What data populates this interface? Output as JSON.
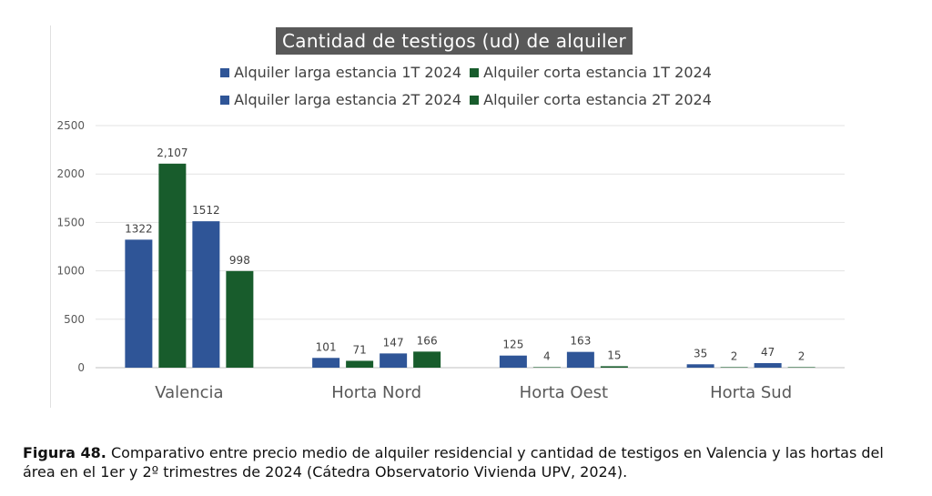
{
  "chart_data": {
    "type": "bar",
    "title": "Cantidad de testigos (ud) de alquiler",
    "categories": [
      "Valencia",
      "Horta Nord",
      "Horta Oest",
      "Horta Sud"
    ],
    "series": [
      {
        "name": "Alquiler larga estancia 1T 2024",
        "color": "#2F5597",
        "values": [
          1322,
          101,
          125,
          35
        ],
        "labels": [
          "1322",
          "101",
          "125",
          "35"
        ]
      },
      {
        "name": "Alquiler corta estancia 1T 2024",
        "color": "#185C2C",
        "values": [
          2107,
          71,
          4,
          2
        ],
        "labels": [
          "2,107",
          "71",
          "4",
          "2"
        ]
      },
      {
        "name": "Alquiler larga estancia 2T 2024",
        "color": "#2F5597",
        "values": [
          1512,
          147,
          163,
          47
        ],
        "labels": [
          "1512",
          "147",
          "163",
          "47"
        ]
      },
      {
        "name": "Alquiler corta estancia 2T 2024",
        "color": "#185C2C",
        "values": [
          998,
          166,
          15,
          2
        ],
        "labels": [
          "998",
          "166",
          "15",
          "2"
        ]
      }
    ],
    "yticks": [
      "0",
      "500",
      "1000",
      "1500",
      "2000",
      "2500"
    ],
    "ylim": [
      0,
      2500
    ],
    "grid": true,
    "legend_position": "top"
  },
  "caption": {
    "label": "Figura 48.",
    "text": " Comparativo entre precio medio de alquiler residencial y cantidad de testigos en Valencia y las hortas del área en el 1er y 2º trimestres de 2024 (Cátedra Observatorio Vivienda UPV, 2024)."
  }
}
